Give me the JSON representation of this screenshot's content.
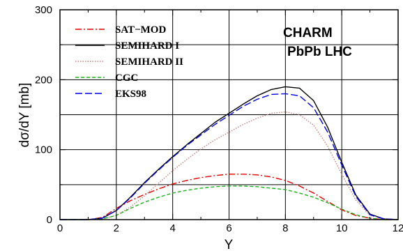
{
  "chart_data": {
    "type": "line",
    "title": "",
    "xlabel": "Y",
    "ylabel": "dσ/dY [mb]",
    "xlim": [
      0,
      12
    ],
    "ylim": [
      0,
      300
    ],
    "x_ticks": [
      "0",
      "2",
      "4",
      "6",
      "8",
      "10",
      "12"
    ],
    "y_ticks": [
      "0",
      "100",
      "200",
      "300"
    ],
    "grid": true,
    "legend_position": "top-left",
    "annotations": [
      "CHARM",
      "PbPb LHC"
    ],
    "x": [
      0,
      0.5,
      1,
      1.5,
      2,
      2.5,
      3,
      3.5,
      4,
      4.5,
      5,
      5.5,
      6,
      6.5,
      7,
      7.5,
      8,
      8.5,
      9,
      9.5,
      10,
      10.5,
      11,
      11.5,
      12
    ],
    "series": [
      {
        "name": "SAT−MOD",
        "color": "#e00000",
        "dash": "dashdot",
        "values": [
          0,
          0,
          0,
          3,
          16,
          27,
          36,
          44,
          51,
          56,
          60,
          63,
          65,
          65,
          64,
          61,
          56,
          48,
          38,
          26,
          14,
          6,
          2,
          0,
          0
        ]
      },
      {
        "name": "SEMIHARD I",
        "color": "#000000",
        "dash": "solid",
        "values": [
          0,
          0,
          0,
          2,
          13,
          32,
          53,
          72,
          90,
          107,
          123,
          139,
          152,
          165,
          177,
          186,
          190,
          188,
          170,
          132,
          82,
          35,
          8,
          1,
          0
        ]
      },
      {
        "name": "SEMIHARD II",
        "color": "#c08080",
        "dash": "dotted",
        "values": [
          0,
          0,
          0,
          1,
          6,
          18,
          34,
          52,
          70,
          86,
          101,
          114,
          125,
          136,
          145,
          152,
          154,
          150,
          135,
          105,
          65,
          28,
          6,
          1,
          0
        ]
      },
      {
        "name": "CGC",
        "color": "#20b020",
        "dash": "dashed",
        "values": [
          0,
          0,
          0,
          1,
          6,
          16,
          25,
          32,
          38,
          42,
          45,
          47,
          48,
          48,
          47,
          45,
          43,
          38,
          32,
          24,
          15,
          7,
          2,
          0,
          0
        ]
      },
      {
        "name": "EKS98",
        "color": "#0000e0",
        "dash": "longdash",
        "values": [
          0,
          0,
          0,
          2,
          13,
          31,
          52,
          71,
          89,
          106,
          121,
          136,
          149,
          162,
          172,
          179,
          180,
          177,
          160,
          125,
          78,
          33,
          7,
          1,
          0
        ]
      }
    ]
  }
}
